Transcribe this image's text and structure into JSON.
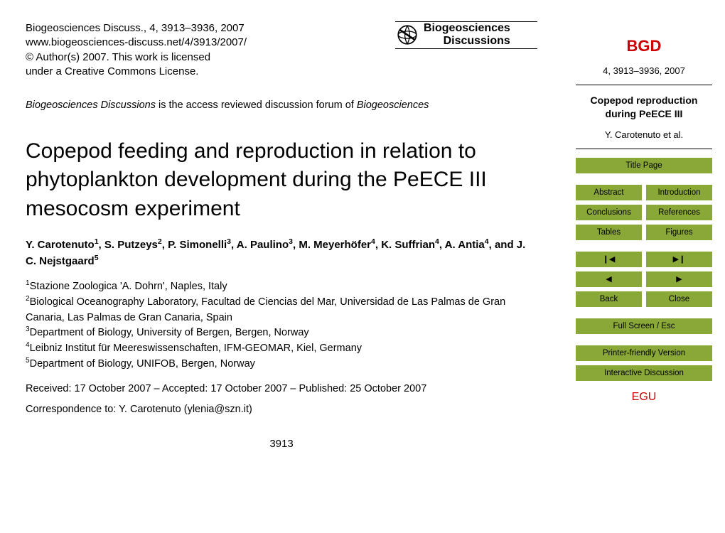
{
  "header": {
    "citation": "Biogeosciences Discuss., 4, 3913–3936, 2007",
    "url": "www.biogeosciences-discuss.net/4/3913/2007/",
    "copyright": "© Author(s) 2007. This work is licensed",
    "license": "under a Creative Commons License.",
    "journal_name_1": "Biogeosciences",
    "journal_name_2": "Discussions"
  },
  "forum_note_prefix": "Biogeosciences Discussions",
  "forum_note_mid": " is the access reviewed discussion forum of ",
  "forum_note_suffix": "Biogeosciences",
  "title": "Copepod feeding and reproduction in relation to phytoplankton development during the PeECE III mesocosm experiment",
  "authors_html": "Y. Carotenuto<sup>1</sup>, S. Putzeys<sup>2</sup>, P. Simonelli<sup>3</sup>, A. Paulino<sup>3</sup>, M. Meyerhöfer<sup>4</sup>, K. Suffrian<sup>4</sup>, A. Antia<sup>4</sup>, and J. C. Nejstgaard<sup>5</sup>",
  "affiliations": [
    "<sup>1</sup>Stazione Zoologica 'A. Dohrn', Naples, Italy",
    "<sup>2</sup>Biological Oceanography Laboratory, Facultad de Ciencias del Mar, Universidad de Las Palmas de Gran Canaria, Las Palmas de Gran Canaria, Spain",
    "<sup>3</sup>Department of Biology, University of Bergen, Bergen, Norway",
    "<sup>4</sup>Leibniz Institut für Meereswissenschaften, IFM-GEOMAR, Kiel, Germany",
    "<sup>5</sup>Department of Biology, UNIFOB, Bergen, Norway"
  ],
  "dates": "Received: 17 October 2007 – Accepted: 17 October 2007 – Published: 25 October 2007",
  "correspondence": "Correspondence to: Y. Carotenuto (ylenia@szn.it)",
  "page_number": "3913",
  "sidebar": {
    "acronym": "BGD",
    "volume": "4, 3913–3936, 2007",
    "short_title": "Copepod reproduction during PeECE III",
    "authors": "Y. Carotenuto et al.",
    "nav": {
      "title_page": "Title Page",
      "abstract": "Abstract",
      "introduction": "Introduction",
      "conclusions": "Conclusions",
      "references": "References",
      "tables": "Tables",
      "figures": "Figures",
      "first": "❙◀",
      "last": "▶❙",
      "prev": "◀",
      "next": "▶",
      "back": "Back",
      "close": "Close",
      "fullscreen": "Full Screen / Esc",
      "printer": "Printer-friendly Version",
      "interactive": "Interactive Discussion"
    },
    "egu": "EGU"
  },
  "colors": {
    "button_bg": "#8aa838",
    "accent_red": "#cc0000"
  }
}
